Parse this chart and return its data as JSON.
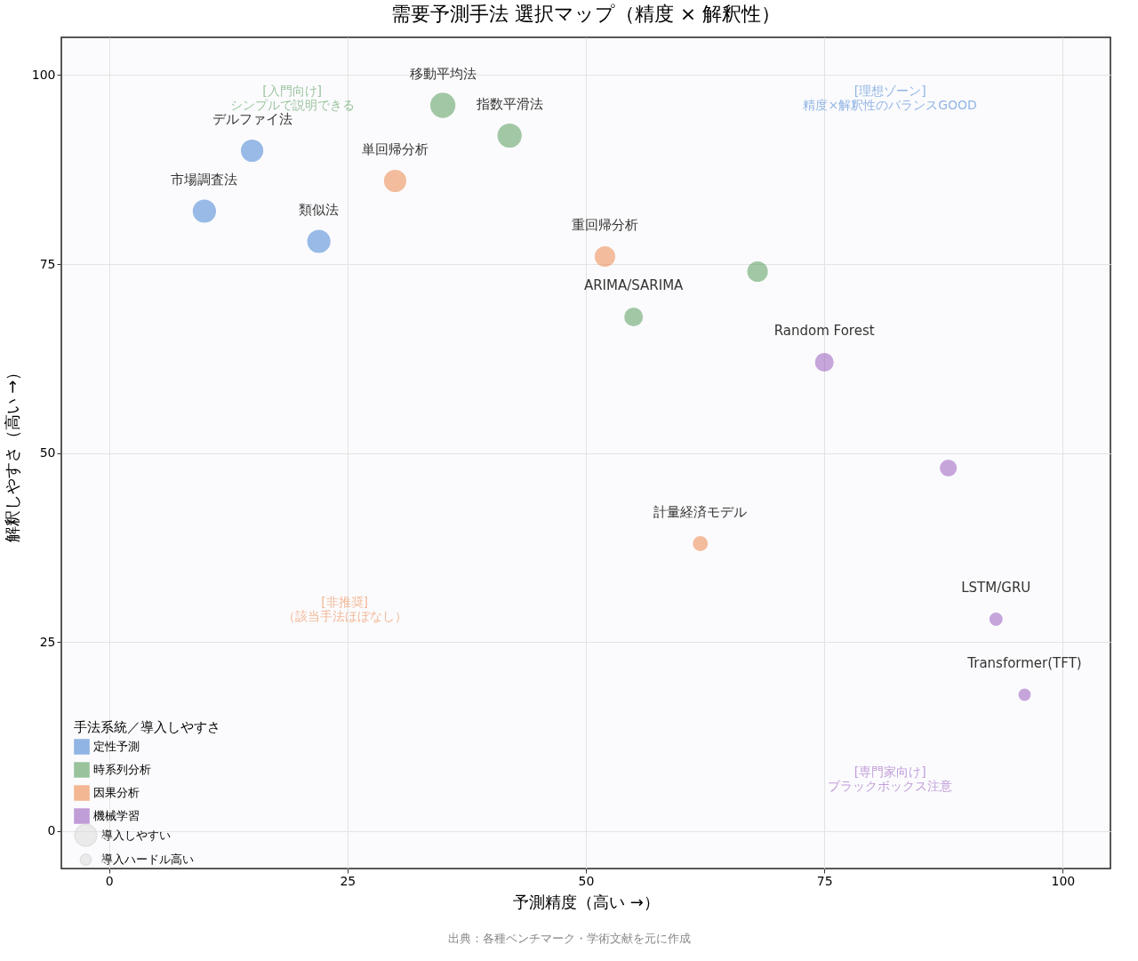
{
  "chart_data": {
    "type": "bubble",
    "title": "需要予測手法 選択マップ（精度 × 解釈性）",
    "xlabel": "予測精度（高い →）",
    "ylabel": "解釈しやすさ（高い →）",
    "legend_title": "手法系統／導入しやすさ",
    "xlim": [
      -5,
      105
    ],
    "ylim": [
      -5,
      105
    ],
    "xticks": [
      0,
      25,
      50,
      75,
      100
    ],
    "yticks": [
      0,
      25,
      50,
      75,
      100
    ],
    "grid": true,
    "legend": "bottom left",
    "marker": "circle",
    "size_legend": [
      {
        "value": 0.85,
        "label": "導入しやすい"
      },
      {
        "value": 0.21,
        "label": "導入ハードル高い"
      }
    ],
    "series": [
      {
        "name": "定性予測",
        "color": "#4a86d4",
        "x": [
          10,
          15,
          22
        ],
        "values": [
          82,
          90,
          78
        ],
        "sizes": [
          0.85,
          0.78,
          0.85
        ]
      },
      {
        "name": "時系列分析",
        "color": "#5a9e5e",
        "x": [
          35,
          42,
          55,
          68
        ],
        "values": [
          96,
          92,
          68,
          74
        ],
        "sizes": [
          1,
          0.92,
          0.53,
          0.65
        ]
      },
      {
        "name": "因果分析",
        "color": "#ee8a4f",
        "x": [
          30,
          52,
          62
        ],
        "values": [
          86,
          76,
          38
        ],
        "sizes": [
          0.78,
          0.65,
          0.33
        ]
      },
      {
        "name": "機械学習",
        "color": "#9b5fc0",
        "x": [
          75,
          88,
          93,
          96
        ],
        "values": [
          62,
          48,
          28,
          18
        ],
        "sizes": [
          0.53,
          0.43,
          0.25,
          0.21
        ]
      }
    ],
    "annotations": [
      {
        "text": "市場調査法",
        "x": 10,
        "y": 82
      },
      {
        "text": "デルファイ法",
        "x": 15,
        "y": 90
      },
      {
        "text": "類似法",
        "x": 22,
        "y": 78
      },
      {
        "text": "移動平均法",
        "x": 35,
        "y": 96
      },
      {
        "text": "指数平滑法",
        "x": 42,
        "y": 92
      },
      {
        "text": "ARIMA/SARIMA",
        "x": 55,
        "y": 68
      },
      {
        "text": "単回帰分析",
        "x": 30,
        "y": 86
      },
      {
        "text": "重回帰分析",
        "x": 52,
        "y": 76
      },
      {
        "text": "計量経済モデル",
        "x": 62,
        "y": 38
      },
      {
        "text": "Random Forest",
        "x": 75,
        "y": 62
      },
      {
        "text": "LSTM/GRU",
        "x": 93,
        "y": 28
      },
      {
        "text": "Transformer(TFT)",
        "x": 96,
        "y": 18
      },
      "[理想ゾーン]\n精度×解釈性のバランスGOOD",
      "[入門向け]\nシンプルで説明できる",
      "[非推奨]\n（該当手法ほぼなし）",
      "[専門家向け]\nブラックボックス注意",
      "出典：各種ベンチマーク・学術文献を元に作成"
    ]
  }
}
